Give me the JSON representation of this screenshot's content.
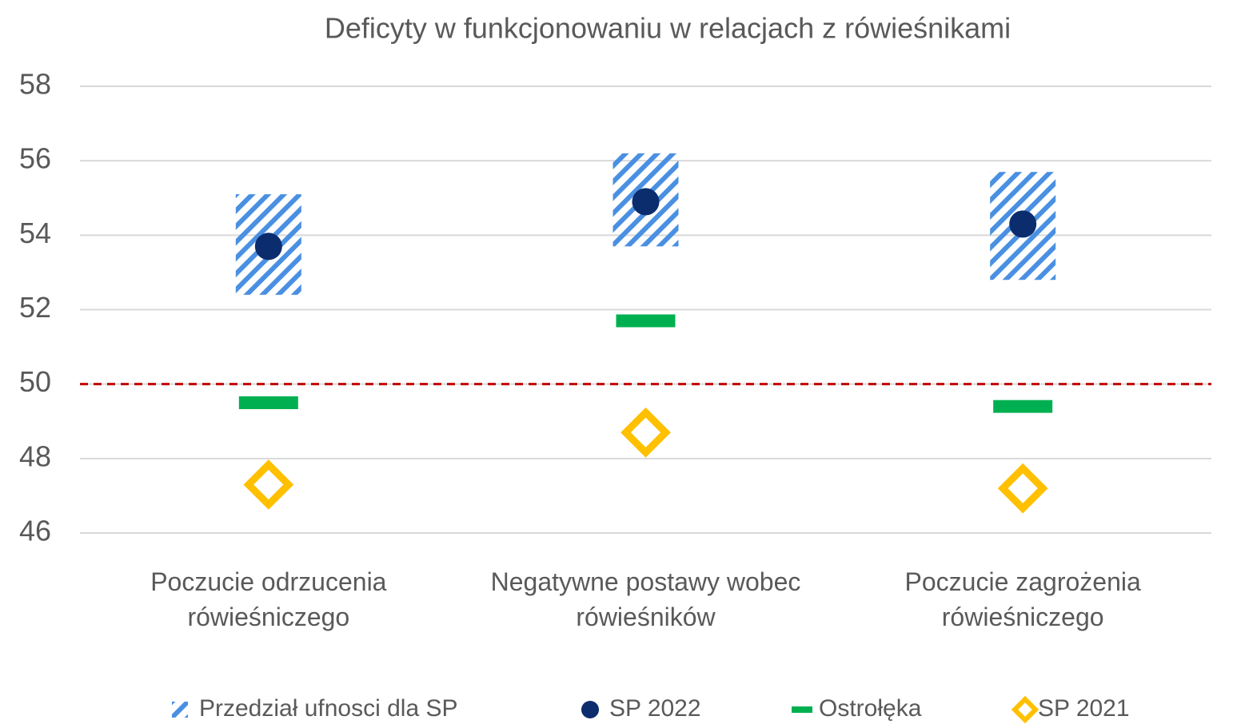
{
  "chart_data": {
    "type": "dot",
    "title": "Deficyty w funkcjonowaniu w relacjach z rówieśnikami",
    "categories": [
      "Poczucie odrzucenia rówieśniczego",
      "Negatywne postawy wobec rówieśników",
      "Poczucie zagrożenia rówieśniczego"
    ],
    "ylim": [
      46,
      58
    ],
    "yticks": [
      46,
      48,
      50,
      52,
      54,
      56,
      58
    ],
    "grid": true,
    "series": [
      {
        "name": "Przedział ufnosci dla SP",
        "kind": "interval",
        "color": "#4a90e2",
        "low": [
          52.4,
          53.7,
          52.8
        ],
        "high": [
          55.1,
          56.2,
          55.7
        ]
      },
      {
        "name": "SP 2022",
        "kind": "dot",
        "color": "#0b2d6e",
        "values": [
          53.7,
          54.9,
          54.3
        ]
      },
      {
        "name": "Ostrołęka",
        "kind": "dash",
        "color": "#00b050",
        "values": [
          49.5,
          51.7,
          49.4
        ]
      },
      {
        "name": "SP 2021",
        "kind": "diamond",
        "color": "#ffc000",
        "values": [
          47.3,
          48.7,
          47.2
        ]
      }
    ],
    "reference_line": {
      "value": 50,
      "color": "#c00000"
    }
  }
}
